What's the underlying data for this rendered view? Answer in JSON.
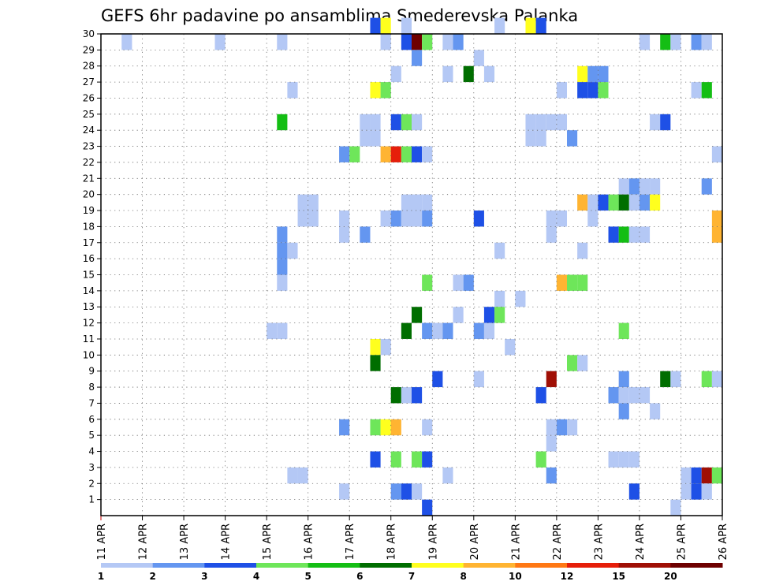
{
  "chart_data": {
    "type": "heatmap",
    "title": "GEFS 6hr padavine po ansamblima Smederevska Palanka",
    "xlabel": "",
    "ylabel": "",
    "x_tick_labels": [
      "11 APR",
      "12 APR",
      "13 APR",
      "14 APR",
      "15 APR",
      "16 APR",
      "17 APR",
      "18 APR",
      "19 APR",
      "20 APR",
      "21 APR",
      "22 APR",
      "23 APR",
      "24 APR",
      "25 APR",
      "26 APR"
    ],
    "y_tick_labels": [
      "1",
      "2",
      "3",
      "4",
      "5",
      "6",
      "7",
      "8",
      "9",
      "10",
      "11",
      "12",
      "13",
      "14",
      "15",
      "16",
      "17",
      "18",
      "19",
      "20",
      "21",
      "22",
      "23",
      "24",
      "25",
      "26",
      "27",
      "28",
      "29",
      "30"
    ],
    "x_range": [
      "11 APR 00z",
      "26 APR 00z"
    ],
    "y_range": [
      0,
      30
    ],
    "time_step_hours": 6,
    "grid": "dotted",
    "colorbar": {
      "position": "bottom",
      "labels": [
        "1",
        "2",
        "3",
        "4",
        "5",
        "6",
        "7",
        "8",
        "10",
        "12",
        "15",
        "20"
      ],
      "colors": [
        "#b4c8f5",
        "#6496f0",
        "#1e50e6",
        "#6ee65a",
        "#14be14",
        "#006e00",
        "#ffff1e",
        "#ffb432",
        "#ff7814",
        "#e61e0a",
        "#a00f05",
        "#6e0000"
      ]
    },
    "points": [
      {
        "m": 30,
        "d": "17 APR 18z",
        "v": 3
      },
      {
        "m": 30,
        "d": "17 APR 24z",
        "v": 7
      },
      {
        "m": 30,
        "d": "18 APR 12z",
        "v": 1
      },
      {
        "m": 30,
        "d": "20 APR 18z",
        "v": 1
      },
      {
        "m": 30,
        "d": "21 APR 12z",
        "v": 7
      },
      {
        "m": 30,
        "d": "21 APR 18z",
        "v": 3
      },
      {
        "m": 29,
        "d": "11 APR 18z",
        "v": 1
      },
      {
        "m": 29,
        "d": "14 APR 00z",
        "v": 1
      },
      {
        "m": 29,
        "d": "15 APR 12z",
        "v": 1
      },
      {
        "m": 29,
        "d": "18 APR 00z",
        "v": 1
      },
      {
        "m": 29,
        "d": "18 APR 12z",
        "v": 3
      },
      {
        "m": 29,
        "d": "18 APR 18z",
        "v": 20
      },
      {
        "m": 29,
        "d": "19 APR 00z",
        "v": 4
      },
      {
        "m": 29,
        "d": "19 APR 12z",
        "v": 1
      },
      {
        "m": 29,
        "d": "19 APR 18z",
        "v": 2
      },
      {
        "m": 29,
        "d": "24 APR 06z",
        "v": 1
      },
      {
        "m": 29,
        "d": "24 APR 18z",
        "v": 5
      },
      {
        "m": 29,
        "d": "25 APR 00z",
        "v": 1
      },
      {
        "m": 29,
        "d": "25 APR 12z",
        "v": 2
      },
      {
        "m": 29,
        "d": "25 APR 18z",
        "v": 1
      },
      {
        "m": 28,
        "d": "18 APR 18z",
        "v": 2
      },
      {
        "m": 28,
        "d": "20 APR 06z",
        "v": 1
      },
      {
        "m": 27,
        "d": "18 APR 06z",
        "v": 1
      },
      {
        "m": 27,
        "d": "19 APR 12z",
        "v": 1
      },
      {
        "m": 27,
        "d": "20 APR 00z",
        "v": 6
      },
      {
        "m": 27,
        "d": "20 APR 12z",
        "v": 1
      },
      {
        "m": 27,
        "d": "22 APR 18z",
        "v": 7
      },
      {
        "m": 27,
        "d": "23 APR 00z",
        "v": 2
      },
      {
        "m": 27,
        "d": "23 APR 06z",
        "v": 2
      },
      {
        "m": 26,
        "d": "15 APR 18z",
        "v": 1
      },
      {
        "m": 26,
        "d": "17 APR 18z",
        "v": 7
      },
      {
        "m": 26,
        "d": "18 APR 00z",
        "v": 4
      },
      {
        "m": 26,
        "d": "22 APR 06z",
        "v": 1
      },
      {
        "m": 26,
        "d": "22 APR 18z",
        "v": 3
      },
      {
        "m": 26,
        "d": "23 APR 00z",
        "v": 3
      },
      {
        "m": 26,
        "d": "23 APR 06z",
        "v": 4
      },
      {
        "m": 26,
        "d": "25 APR 12z",
        "v": 1
      },
      {
        "m": 26,
        "d": "25 APR 18z",
        "v": 5
      },
      {
        "m": 24,
        "d": "15 APR 12z",
        "v": 5
      },
      {
        "m": 24,
        "d": "17 APR 12z",
        "v": 1
      },
      {
        "m": 24,
        "d": "17 APR 18z",
        "v": 1
      },
      {
        "m": 24,
        "d": "18 APR 06z",
        "v": 3
      },
      {
        "m": 24,
        "d": "18 APR 12z",
        "v": 4
      },
      {
        "m": 24,
        "d": "18 APR 18z",
        "v": 1
      },
      {
        "m": 24,
        "d": "21 APR 12z",
        "v": 1
      },
      {
        "m": 24,
        "d": "21 APR 18z",
        "v": 1
      },
      {
        "m": 24,
        "d": "22 APR 00z",
        "v": 1
      },
      {
        "m": 24,
        "d": "22 APR 06z",
        "v": 1
      },
      {
        "m": 24,
        "d": "24 APR 12z",
        "v": 1
      },
      {
        "m": 24,
        "d": "24 APR 18z",
        "v": 3
      },
      {
        "m": 23,
        "d": "17 APR 12z",
        "v": 1
      },
      {
        "m": 23,
        "d": "17 APR 18z",
        "v": 1
      },
      {
        "m": 23,
        "d": "21 APR 12z",
        "v": 1
      },
      {
        "m": 23,
        "d": "21 APR 18z",
        "v": 1
      },
      {
        "m": 23,
        "d": "22 APR 12z",
        "v": 2
      },
      {
        "m": 22,
        "d": "17 APR 00z",
        "v": 2
      },
      {
        "m": 22,
        "d": "17 APR 06z",
        "v": 4
      },
      {
        "m": 22,
        "d": "18 APR 00z",
        "v": 9
      },
      {
        "m": 22,
        "d": "18 APR 06z",
        "v": 12
      },
      {
        "m": 22,
        "d": "18 APR 12z",
        "v": 4
      },
      {
        "m": 22,
        "d": "18 APR 18z",
        "v": 3
      },
      {
        "m": 22,
        "d": "19 APR 00z",
        "v": 1
      },
      {
        "m": 22,
        "d": "26 APR 00z",
        "v": 1
      },
      {
        "m": 20,
        "d": "23 APR 18z",
        "v": 1
      },
      {
        "m": 20,
        "d": "24 APR 00z",
        "v": 2
      },
      {
        "m": 20,
        "d": "24 APR 06z",
        "v": 1
      },
      {
        "m": 20,
        "d": "24 APR 12z",
        "v": 1
      },
      {
        "m": 20,
        "d": "25 APR 18z",
        "v": 2
      },
      {
        "m": 19,
        "d": "16 APR 00z",
        "v": 1
      },
      {
        "m": 19,
        "d": "16 APR 06z",
        "v": 1
      },
      {
        "m": 19,
        "d": "18 APR 12z",
        "v": 1
      },
      {
        "m": 19,
        "d": "18 APR 18z",
        "v": 1
      },
      {
        "m": 19,
        "d": "19 APR 00z",
        "v": 1
      },
      {
        "m": 19,
        "d": "22 APR 18z",
        "v": 8
      },
      {
        "m": 19,
        "d": "23 APR 00z",
        "v": 1
      },
      {
        "m": 19,
        "d": "23 APR 06z",
        "v": 3
      },
      {
        "m": 19,
        "d": "23 APR 12z",
        "v": 4
      },
      {
        "m": 19,
        "d": "23 APR 18z",
        "v": 6
      },
      {
        "m": 19,
        "d": "24 APR 00z",
        "v": 1
      },
      {
        "m": 19,
        "d": "24 APR 06z",
        "v": 2
      },
      {
        "m": 19,
        "d": "24 APR 12z",
        "v": 7
      },
      {
        "m": 18,
        "d": "16 APR 00z",
        "v": 1
      },
      {
        "m": 18,
        "d": "16 APR 06z",
        "v": 1
      },
      {
        "m": 18,
        "d": "17 APR 00z",
        "v": 1
      },
      {
        "m": 18,
        "d": "18 APR 00z",
        "v": 1
      },
      {
        "m": 18,
        "d": "18 APR 06z",
        "v": 2
      },
      {
        "m": 18,
        "d": "18 APR 12z",
        "v": 1
      },
      {
        "m": 18,
        "d": "18 APR 18z",
        "v": 1
      },
      {
        "m": 18,
        "d": "19 APR 00z",
        "v": 2
      },
      {
        "m": 18,
        "d": "20 APR 06z",
        "v": 3
      },
      {
        "m": 18,
        "d": "22 APR 00z",
        "v": 1
      },
      {
        "m": 18,
        "d": "22 APR 06z",
        "v": 1
      },
      {
        "m": 18,
        "d": "23 APR 00z",
        "v": 1
      },
      {
        "m": 18,
        "d": "26 APR 00z",
        "v": 8
      },
      {
        "m": 17,
        "d": "17 APR 12z",
        "v": 2
      },
      {
        "m": 17,
        "d": "17 APR 00z",
        "v": 1
      },
      {
        "m": 17,
        "d": "15 APR 12z",
        "v": 2
      },
      {
        "m": 17,
        "d": "22 APR 00z",
        "v": 1
      },
      {
        "m": 17,
        "d": "23 APR 12z",
        "v": 3
      },
      {
        "m": 17,
        "d": "23 APR 18z",
        "v": 5
      },
      {
        "m": 17,
        "d": "24 APR 00z",
        "v": 1
      },
      {
        "m": 17,
        "d": "24 APR 06z",
        "v": 1
      },
      {
        "m": 17,
        "d": "26 APR 00z",
        "v": 8
      },
      {
        "m": 16,
        "d": "15 APR 12z",
        "v": 2
      },
      {
        "m": 16,
        "d": "15 APR 18z",
        "v": 1
      },
      {
        "m": 16,
        "d": "20 APR 18z",
        "v": 1
      },
      {
        "m": 16,
        "d": "22 APR 18z",
        "v": 1
      },
      {
        "m": 15,
        "d": "15 APR 12z",
        "v": 2
      },
      {
        "m": 14,
        "d": "15 APR 12z",
        "v": 1
      },
      {
        "m": 14,
        "d": "19 APR 00z",
        "v": 4
      },
      {
        "m": 14,
        "d": "19 APR 18z",
        "v": 1
      },
      {
        "m": 14,
        "d": "20 APR 00z",
        "v": 2
      },
      {
        "m": 14,
        "d": "22 APR 06z",
        "v": 8
      },
      {
        "m": 14,
        "d": "22 APR 12z",
        "v": 4
      },
      {
        "m": 14,
        "d": "22 APR 18z",
        "v": 4
      },
      {
        "m": 13,
        "d": "20 APR 18z",
        "v": 1
      },
      {
        "m": 13,
        "d": "21 APR 06z",
        "v": 1
      },
      {
        "m": 12,
        "d": "18 APR 18z",
        "v": 6
      },
      {
        "m": 12,
        "d": "19 APR 18z",
        "v": 1
      },
      {
        "m": 12,
        "d": "20 APR 12z",
        "v": 3
      },
      {
        "m": 12,
        "d": "20 APR 18z",
        "v": 4
      },
      {
        "m": 11,
        "d": "15 APR 06z",
        "v": 1
      },
      {
        "m": 11,
        "d": "15 APR 12z",
        "v": 1
      },
      {
        "m": 11,
        "d": "18 APR 12z",
        "v": 6
      },
      {
        "m": 11,
        "d": "19 APR 00z",
        "v": 2
      },
      {
        "m": 11,
        "d": "19 APR 06z",
        "v": 1
      },
      {
        "m": 11,
        "d": "19 APR 12z",
        "v": 2
      },
      {
        "m": 11,
        "d": "20 APR 06z",
        "v": 2
      },
      {
        "m": 11,
        "d": "20 APR 12z",
        "v": 1
      },
      {
        "m": 11,
        "d": "23 APR 18z",
        "v": 4
      },
      {
        "m": 10,
        "d": "17 APR 18z",
        "v": 7
      },
      {
        "m": 10,
        "d": "18 APR 00z",
        "v": 1
      },
      {
        "m": 10,
        "d": "21 APR 00z",
        "v": 1
      },
      {
        "m": 9,
        "d": "17 APR 18z",
        "v": 6
      },
      {
        "m": 9,
        "d": "22 APR 12z",
        "v": 4
      },
      {
        "m": 9,
        "d": "22 APR 18z",
        "v": 1
      },
      {
        "m": 8,
        "d": "19 APR 06z",
        "v": 3
      },
      {
        "m": 8,
        "d": "20 APR 06z",
        "v": 1
      },
      {
        "m": 8,
        "d": "22 APR 00z",
        "v": 15
      },
      {
        "m": 8,
        "d": "23 APR 18z",
        "v": 2
      },
      {
        "m": 8,
        "d": "24 APR 18z",
        "v": 6
      },
      {
        "m": 8,
        "d": "25 APR 00z",
        "v": 1
      },
      {
        "m": 8,
        "d": "25 APR 18z",
        "v": 4
      },
      {
        "m": 8,
        "d": "26 APR 00z",
        "v": 1
      },
      {
        "m": 7,
        "d": "18 APR 06z",
        "v": 6
      },
      {
        "m": 7,
        "d": "18 APR 12z",
        "v": 1
      },
      {
        "m": 7,
        "d": "18 APR 18z",
        "v": 3
      },
      {
        "m": 7,
        "d": "21 APR 18z",
        "v": 3
      },
      {
        "m": 7,
        "d": "23 APR 12z",
        "v": 2
      },
      {
        "m": 7,
        "d": "23 APR 18z",
        "v": 1
      },
      {
        "m": 7,
        "d": "24 APR 00z",
        "v": 1
      },
      {
        "m": 7,
        "d": "24 APR 06z",
        "v": 1
      },
      {
        "m": 6,
        "d": "23 APR 18z",
        "v": 2
      },
      {
        "m": 6,
        "d": "24 APR 12z",
        "v": 1
      },
      {
        "m": 5,
        "d": "17 APR 00z",
        "v": 2
      },
      {
        "m": 5,
        "d": "17 APR 18z",
        "v": 4
      },
      {
        "m": 5,
        "d": "18 APR 00z",
        "v": 7
      },
      {
        "m": 5,
        "d": "18 APR 06z",
        "v": 9
      },
      {
        "m": 5,
        "d": "19 APR 00z",
        "v": 1
      },
      {
        "m": 5,
        "d": "22 APR 00z",
        "v": 1
      },
      {
        "m": 5,
        "d": "22 APR 06z",
        "v": 2
      },
      {
        "m": 5,
        "d": "22 APR 12z",
        "v": 1
      },
      {
        "m": 4,
        "d": "22 APR 00z",
        "v": 1
      },
      {
        "m": 3,
        "d": "17 APR 18z",
        "v": 3
      },
      {
        "m": 3,
        "d": "18 APR 06z",
        "v": 4
      },
      {
        "m": 3,
        "d": "18 APR 18z",
        "v": 4
      },
      {
        "m": 3,
        "d": "19 APR 00z",
        "v": 3
      },
      {
        "m": 3,
        "d": "21 APR 18z",
        "v": 4
      },
      {
        "m": 3,
        "d": "23 APR 12z",
        "v": 1
      },
      {
        "m": 3,
        "d": "23 APR 18z",
        "v": 1
      },
      {
        "m": 3,
        "d": "24 APR 00z",
        "v": 1
      },
      {
        "m": 2,
        "d": "15 APR 18z",
        "v": 1
      },
      {
        "m": 2,
        "d": "16 APR 00z",
        "v": 1
      },
      {
        "m": 2,
        "d": "19 APR 12z",
        "v": 1
      },
      {
        "m": 2,
        "d": "22 APR 00z",
        "v": 2
      },
      {
        "m": 2,
        "d": "25 APR 06z",
        "v": 1
      },
      {
        "m": 2,
        "d": "25 APR 12z",
        "v": 3
      },
      {
        "m": 2,
        "d": "25 APR 18z",
        "v": 15
      },
      {
        "m": 2,
        "d": "26 APR 00z",
        "v": 4
      },
      {
        "m": 1,
        "d": "17 APR 00z",
        "v": 1
      },
      {
        "m": 1,
        "d": "18 APR 06z",
        "v": 2
      },
      {
        "m": 1,
        "d": "18 APR 12z",
        "v": 3
      },
      {
        "m": 1,
        "d": "18 APR 18z",
        "v": 1
      },
      {
        "m": 1,
        "d": "24 APR 00z",
        "v": 3
      },
      {
        "m": 1,
        "d": "25 APR 06z",
        "v": 1
      },
      {
        "m": 1,
        "d": "25 APR 12z",
        "v": 3
      },
      {
        "m": 1,
        "d": "25 APR 18z",
        "v": 1
      },
      {
        "m": 0,
        "d": "19 APR 00z",
        "v": 3
      },
      {
        "m": 0,
        "d": "24 APR 24z",
        "v": 1
      }
    ]
  }
}
